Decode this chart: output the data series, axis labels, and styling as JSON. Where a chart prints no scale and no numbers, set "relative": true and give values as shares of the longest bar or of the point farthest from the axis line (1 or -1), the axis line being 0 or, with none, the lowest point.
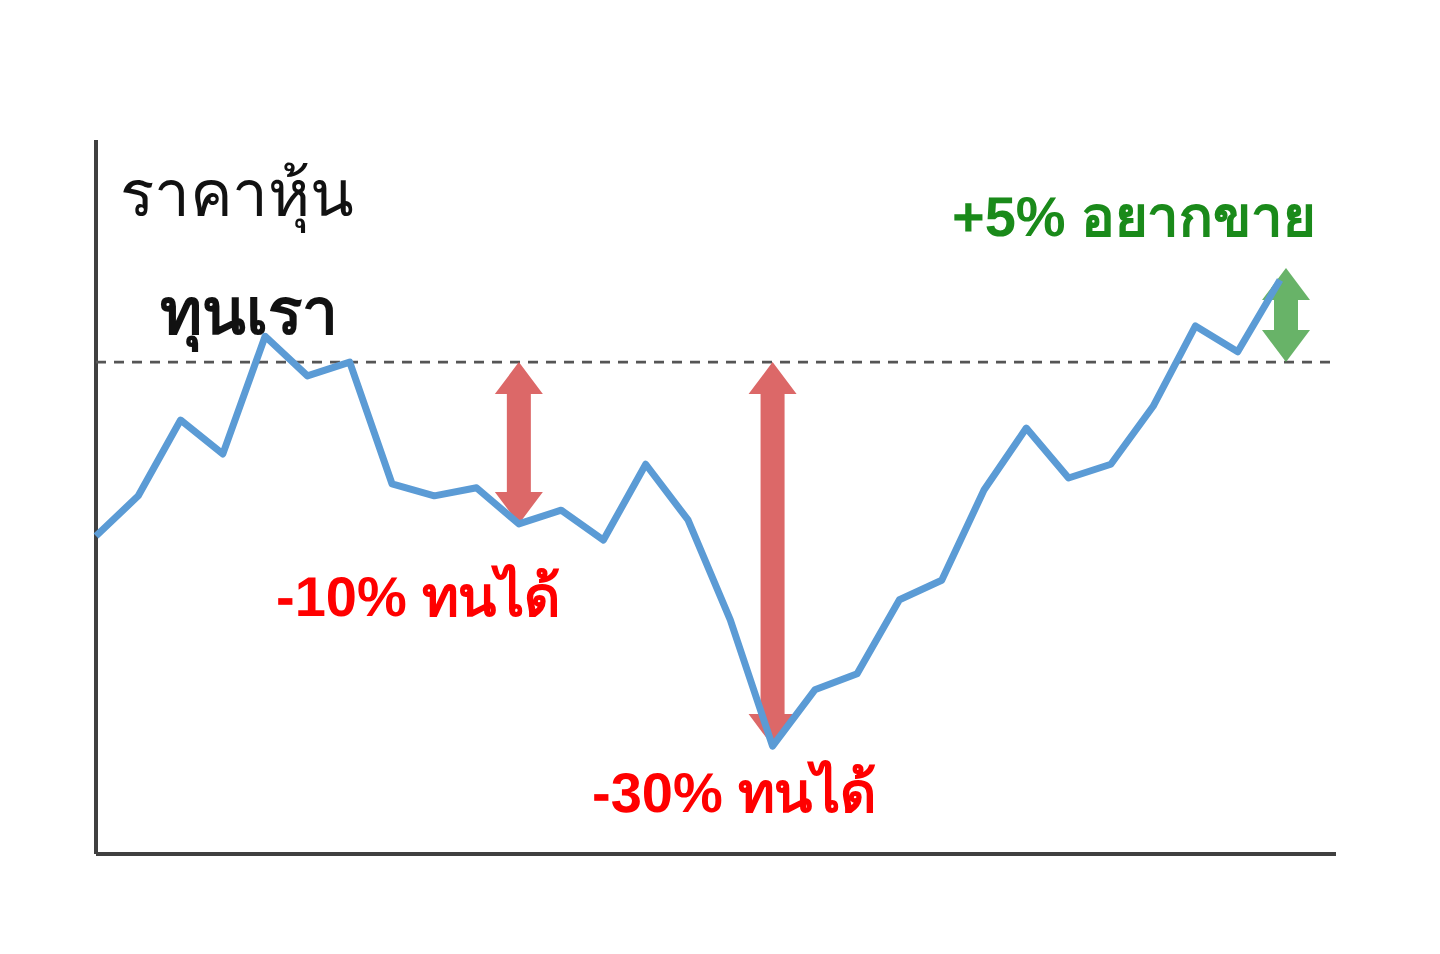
{
  "chart_data": {
    "type": "line",
    "relative": true,
    "ylabel": "ราคาหุ้น",
    "categories": [
      null,
      null,
      null,
      null,
      null,
      null,
      null,
      null,
      null,
      null,
      null,
      null,
      null,
      null,
      null,
      null,
      null,
      null,
      null,
      null,
      null,
      null,
      null,
      null,
      null,
      null,
      null,
      null,
      null
    ],
    "series": [
      {
        "color": "#5b9bd5",
        "values": [
          0.554,
          0.624,
          0.756,
          0.697,
          0.902,
          0.833,
          0.857,
          0.645,
          0.624,
          0.638,
          0.575,
          0.599,
          0.547,
          0.679,
          0.582,
          0.408,
          0.188,
          0.286,
          0.314,
          0.443,
          0.477,
          0.634,
          0.742,
          0.655,
          0.679,
          0.78,
          0.92,
          0.875,
          1.0
        ]
      }
    ],
    "ref_lines": [
      {
        "axis": "y",
        "value": 0.857,
        "label": "ทุนเรา",
        "color": "#555555",
        "line_style": "dashed"
      }
    ],
    "annotations": [
      "-10% ทนได้",
      "-30% ทนได้",
      "+5% อยากขาย"
    ],
    "marker": "none",
    "line_style": "solid"
  }
}
